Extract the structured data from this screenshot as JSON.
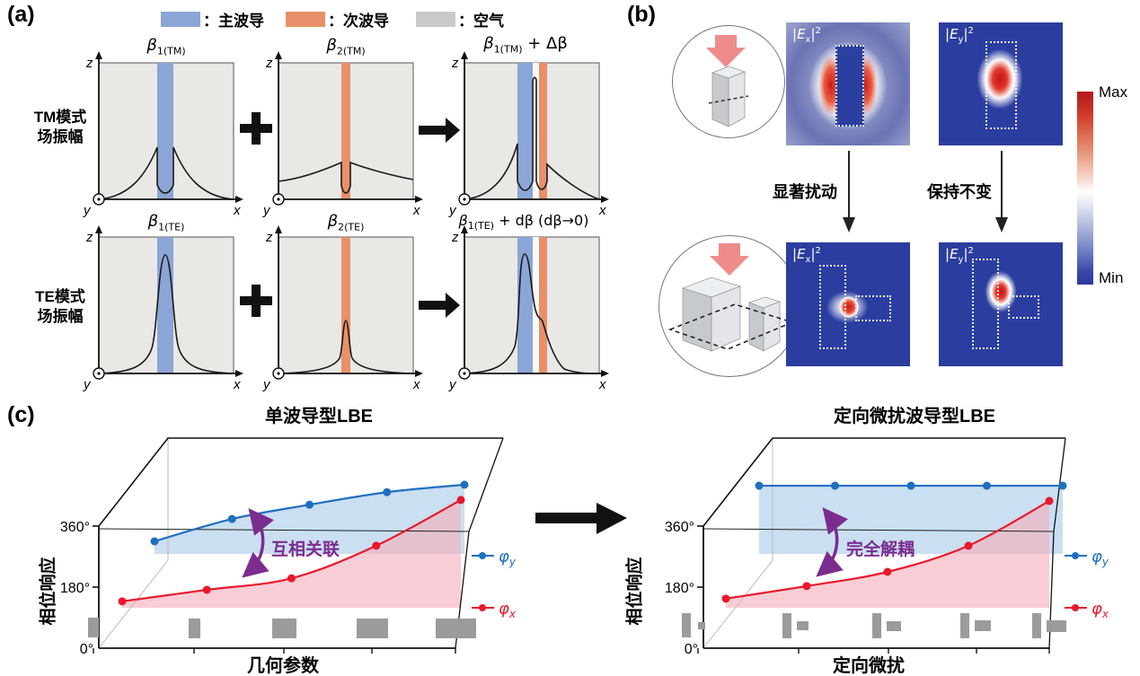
{
  "panel_a": {
    "label": "(a)",
    "legend": [
      {
        "label": "：主波导",
        "color": "#8ba5d6"
      },
      {
        "label": "：次波导",
        "color": "#e8906a"
      },
      {
        "label": "：空气",
        "color": "#c9c9c9"
      }
    ],
    "row_labels": [
      {
        "line1": "TM模式",
        "line2": "场振幅"
      },
      {
        "line1": "TE模式",
        "line2": "场振幅"
      }
    ],
    "axis": {
      "z": "z",
      "x": "x",
      "y": "y"
    },
    "operators": {
      "plus": "+",
      "arrow": "→"
    },
    "plots": {
      "tm1": {
        "beta": "β",
        "sub": "1(TM)",
        "suffix": ""
      },
      "tm2": {
        "beta": "β",
        "sub": "2(TM)",
        "suffix": ""
      },
      "tm3": {
        "beta": "β",
        "sub": "1(TM)",
        "suffix": " + Δβ"
      },
      "te1": {
        "beta": "β",
        "sub": "1(TE)",
        "suffix": ""
      },
      "te2": {
        "beta": "β",
        "sub": "2(TE)",
        "suffix": ""
      },
      "te3": {
        "beta": "β",
        "sub": "1(TE)",
        "suffix": " + dβ (dβ→0)"
      }
    }
  },
  "panel_b": {
    "label": "(b)",
    "ex_label": {
      "lbar": "|",
      "symbol": "E",
      "sub": "x",
      "rbar": "|",
      "sup": "2"
    },
    "ey_label": {
      "lbar": "|",
      "symbol": "E",
      "sub": "y",
      "rbar": "|",
      "sup": "2"
    },
    "annotations": {
      "perturbed": "显著扰动",
      "unchanged": "保持不变"
    },
    "colorbar": {
      "max": "Max",
      "min": "Min"
    }
  },
  "panel_c": {
    "label": "(c)",
    "charts": [
      {
        "title": "单波导型LBE",
        "ylabel": "相位响应",
        "xlabel": "几何参数",
        "yticks": [
          "0°",
          "180°",
          "360°"
        ],
        "annotation": "互相关联",
        "legend": [
          {
            "sym": "φ",
            "sub": "y"
          },
          {
            "sym": "φ",
            "sub": "x"
          }
        ]
      },
      {
        "title": "定向微扰波导型LBE",
        "ylabel": "相位响应",
        "xlabel": "定向微扰",
        "yticks": [
          "0°",
          "180°",
          "360°"
        ],
        "annotation": "完全解耦",
        "legend": [
          {
            "sym": "φ",
            "sub": "y"
          },
          {
            "sym": "φ",
            "sub": "x"
          }
        ]
      }
    ]
  },
  "chart_data": [
    {
      "type": "line",
      "title": "单波导型LBE",
      "xlabel": "几何参数",
      "ylabel": "相位响应",
      "ylim_deg": [
        0,
        360
      ],
      "yticks_deg": [
        0,
        180,
        360
      ],
      "x_samples": 5,
      "series": [
        {
          "name": "φ_y",
          "color": "#1f6fc0",
          "fill_color": "#a9cbe8",
          "y_deg": [
            315,
            381,
            423,
            460,
            482
          ]
        },
        {
          "name": "φ_x",
          "color": "#e8192c",
          "fill_color": "#f5aebc",
          "y_deg": [
            138,
            172,
            206,
            302,
            437
          ]
        }
      ],
      "annotation": "互相关联",
      "annotation_color": "#7b2c8f",
      "x_axis_icons": "gray squares of increasing width (waveguide geometry)"
    },
    {
      "type": "line",
      "title": "定向微扰波导型LBE",
      "xlabel": "定向微扰",
      "ylabel": "相位响应",
      "ylim_deg": [
        0,
        360
      ],
      "yticks_deg": [
        0,
        180,
        360
      ],
      "x_samples": 5,
      "series": [
        {
          "name": "φ_y",
          "color": "#1f6fc0",
          "fill_color": "#a9cbe8",
          "y_deg": [
            479,
            479,
            479,
            479,
            479
          ]
        },
        {
          "name": "φ_x",
          "color": "#e8192c",
          "fill_color": "#f5aebc",
          "y_deg": [
            146,
            183,
            225,
            302,
            434
          ]
        }
      ],
      "annotation": "完全解耦",
      "annotation_color": "#7b2c8f",
      "x_axis_icons": "waveguide bar + growing perturbation bar pairs"
    }
  ]
}
